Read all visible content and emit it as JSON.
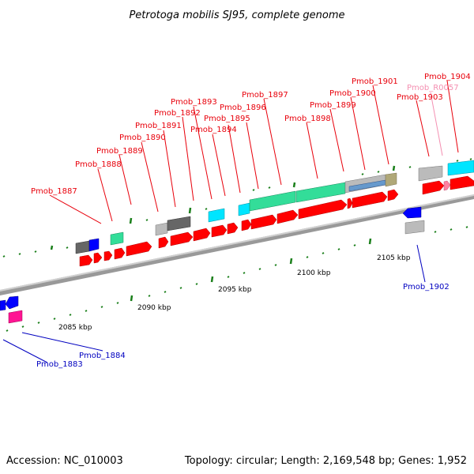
{
  "title": "Petrotoga mobilis SJ95, complete genome",
  "footer": {
    "accession": "Accession: NC_010003",
    "summary": "Topology: circular; Length: 2,169,548 bp; Genes: 1,952"
  },
  "colors": {
    "forward_label": "#e8000b",
    "reverse_label": "#0000c0",
    "rna_label": "#f48fb1",
    "cds_red": "#ff0000",
    "cds_blue": "#0000ff",
    "cds_magenta": "#ff1493",
    "cog_cyan": "#00e5ff",
    "cog_green": "#33dd99",
    "cog_gray": "#bbbbbb",
    "cog_dark": "#666666",
    "cog_olive": "#b0a878",
    "cog_steel": "#6699cc",
    "tick_green": "#1a7f1a",
    "backbone": "#999999"
  },
  "scale_labels": [
    "2085 kbp",
    "2090 kbp",
    "2095 kbp",
    "2100 kbp",
    "2105 kbp"
  ],
  "genes": [
    {
      "id": "Pmob_1883",
      "strand": "reverse"
    },
    {
      "id": "Pmob_1884",
      "strand": "reverse"
    },
    {
      "id": "Pmob_1887",
      "strand": "forward"
    },
    {
      "id": "Pmob_1888",
      "strand": "forward"
    },
    {
      "id": "Pmob_1889",
      "strand": "forward"
    },
    {
      "id": "Pmob_1890",
      "strand": "forward"
    },
    {
      "id": "Pmob_1891",
      "strand": "forward"
    },
    {
      "id": "Pmob_1892",
      "strand": "forward"
    },
    {
      "id": "Pmob_1893",
      "strand": "forward"
    },
    {
      "id": "Pmob_1894",
      "strand": "forward"
    },
    {
      "id": "Pmob_1895",
      "strand": "forward"
    },
    {
      "id": "Pmob_1896",
      "strand": "forward"
    },
    {
      "id": "Pmob_1897",
      "strand": "forward"
    },
    {
      "id": "Pmob_1898",
      "strand": "forward"
    },
    {
      "id": "Pmob_1899",
      "strand": "forward"
    },
    {
      "id": "Pmob_1900",
      "strand": "forward"
    },
    {
      "id": "Pmob_1901",
      "strand": "forward"
    },
    {
      "id": "Pmob_R0057",
      "strand": "rna"
    },
    {
      "id": "Pmob_1902",
      "strand": "reverse"
    },
    {
      "id": "Pmob_1903",
      "strand": "forward"
    },
    {
      "id": "Pmob_1904",
      "strand": "forward"
    }
  ]
}
